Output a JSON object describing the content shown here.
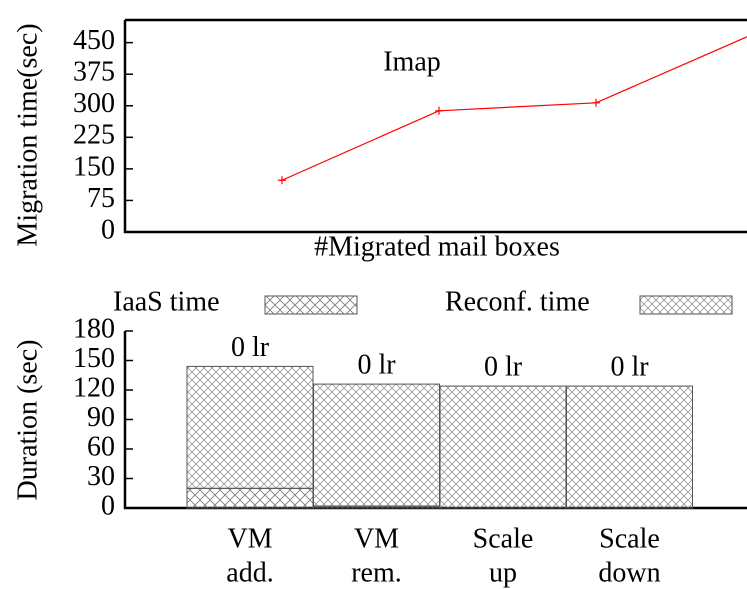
{
  "chart_data": [
    {
      "type": "line",
      "ylabel": "Migration time(sec)",
      "xlabel": "#Migrated mail boxes",
      "annotation": "Imap",
      "categories": [
        null,
        null,
        null,
        null
      ],
      "series": [
        {
          "name": "Imap",
          "color": "#ff0000",
          "values": [
            123,
            288,
            307,
            470
          ]
        }
      ],
      "ylim": [
        0,
        480
      ],
      "yticks": [
        0,
        75,
        150,
        225,
        300,
        375,
        450
      ]
    },
    {
      "type": "bar",
      "ylabel": "Duration (sec)",
      "categories": [
        [
          "VM",
          "add."
        ],
        [
          "VM",
          "rem."
        ],
        [
          "Scale",
          "up"
        ],
        [
          "Scale",
          "down"
        ]
      ],
      "series": [
        {
          "name": "IaaS time",
          "pattern": "cross",
          "values": [
            20,
            2,
            0,
            0
          ]
        },
        {
          "name": "Reconf. time",
          "pattern": "dots",
          "values": [
            124,
            124,
            124,
            124
          ]
        }
      ],
      "bar_labels": [
        "0 lr",
        "0 lr",
        "0 lr",
        "0 lr"
      ],
      "ylim": [
        0,
        180
      ],
      "yticks": [
        0,
        30,
        60,
        90,
        120,
        150,
        180
      ]
    }
  ]
}
